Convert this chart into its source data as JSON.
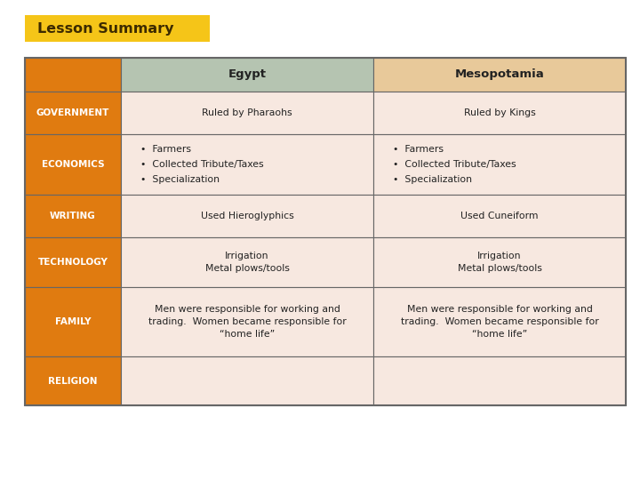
{
  "title": "Lesson Summary",
  "title_bg": "#F5C518",
  "title_color": "#3D2B00",
  "bg_color": "#FFFFFF",
  "col_header_egypt_bg": "#B5C4B1",
  "col_header_mesop_bg": "#E8C99A",
  "row_header_bg": "#E07B10",
  "row_header_text_color": "#FFFFFF",
  "cell_bg_egypt": "#F7E8E0",
  "cell_bg_mesop": "#F7E8E0",
  "border_color": "#666666",
  "col_headers": [
    "",
    "Egypt",
    "Mesopotamia"
  ],
  "rows": [
    {
      "label": "GOVERNMENT",
      "egypt": "Ruled by Pharaohs",
      "mesop": "Ruled by Kings",
      "egypt_bullet": false,
      "mesop_bullet": false
    },
    {
      "label": "ECONOMICS",
      "egypt": "Farmers\nCollected Tribute/Taxes\nSpecialization",
      "mesop": "Farmers\nCollected Tribute/Taxes\nSpecialization",
      "egypt_bullet": true,
      "mesop_bullet": true
    },
    {
      "label": "WRITING",
      "egypt": "Used Hieroglyphics",
      "mesop": "Used Cuneiform",
      "egypt_bullet": false,
      "mesop_bullet": false
    },
    {
      "label": "TECHNOLOGY",
      "egypt": "Irrigation\nMetal plows/tools",
      "mesop": "Irrigation\nMetal plows/tools",
      "egypt_bullet": false,
      "mesop_bullet": false
    },
    {
      "label": "FAMILY",
      "egypt": "Men were responsible for working and\ntrading.  Women became responsible for\n“home life”",
      "mesop": "Men were responsible for working and\ntrading.  Women became responsible for\n“home life”",
      "egypt_bullet": false,
      "mesop_bullet": false
    },
    {
      "label": "RELIGION",
      "egypt": "",
      "mesop": "",
      "egypt_bullet": false,
      "mesop_bullet": false
    }
  ]
}
